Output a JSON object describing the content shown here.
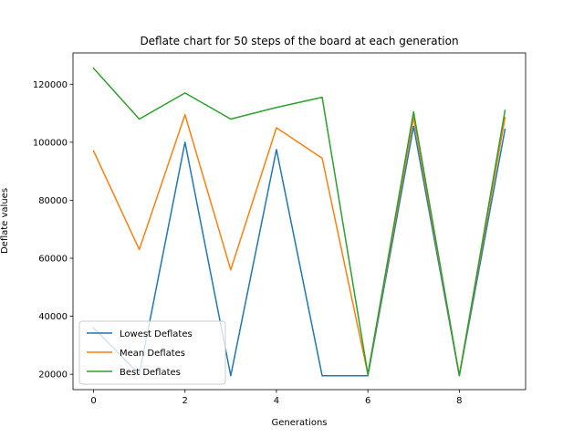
{
  "chart_data": {
    "type": "line",
    "title": "Deflate chart for 50 steps of the board at each generation",
    "xlabel": "Generations",
    "ylabel": "Deflate values",
    "x": [
      0,
      1,
      2,
      3,
      4,
      5,
      6,
      7,
      8,
      9
    ],
    "xlim": [
      -0.45,
      9.45
    ],
    "ylim": [
      14700,
      130800
    ],
    "xticks": [
      0,
      2,
      4,
      6,
      8
    ],
    "yticks": [
      20000,
      40000,
      60000,
      80000,
      100000,
      120000
    ],
    "xtick_labels": [
      "0",
      "2",
      "4",
      "6",
      "8"
    ],
    "ytick_labels": [
      "20000",
      "40000",
      "60000",
      "80000",
      "100000",
      "120000"
    ],
    "grid": false,
    "legend_position": "lower-left",
    "series": [
      {
        "name": "Lowest Deflates",
        "color": "#1f77b4",
        "values": [
          36000,
          20000,
          100000,
          19500,
          97500,
          19500,
          19500,
          105500,
          19500,
          104500
        ]
      },
      {
        "name": "Mean Deflates",
        "color": "#ff7f0e",
        "values": [
          97000,
          63000,
          109500,
          56000,
          105000,
          94500,
          20000,
          108500,
          19700,
          108500
        ]
      },
      {
        "name": "Best Deflates",
        "color": "#2ca02c",
        "values": [
          125500,
          108000,
          117000,
          108000,
          112000,
          115500,
          20000,
          110500,
          19500,
          111000
        ]
      }
    ]
  }
}
